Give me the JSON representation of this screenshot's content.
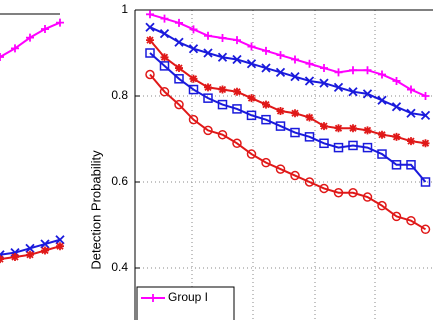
{
  "chart_data": [
    {
      "type": "line",
      "ylim": [
        0.2,
        1
      ],
      "series": [
        {
          "color": "#ff00ff",
          "marker": "plus",
          "values": [
            0.9,
            0.92,
            0.945,
            0.965,
            0.98
          ]
        },
        {
          "color": "#1a1adc",
          "marker": "x",
          "values": [
            0.44,
            0.445,
            0.455,
            0.465,
            0.475
          ]
        },
        {
          "color": "#e01818",
          "marker": "star",
          "values": [
            0.43,
            0.435,
            0.44,
            0.45,
            0.46
          ]
        }
      ]
    },
    {
      "type": "line",
      "ylabel": "Detection Probability",
      "ylim": [
        0.2,
        1
      ],
      "yticks": [
        0.4,
        0.6,
        0.8,
        1
      ],
      "grid": true,
      "series": [
        {
          "name": "Group I",
          "color": "#ff00ff",
          "marker": "plus",
          "values": [
            0.99,
            0.98,
            0.97,
            0.955,
            0.94,
            0.935,
            0.93,
            0.915,
            0.905,
            0.895,
            0.885,
            0.875,
            0.865,
            0.855,
            0.86,
            0.86,
            0.85,
            0.835,
            0.815,
            0.8
          ]
        },
        {
          "color": "#1a1adc",
          "marker": "x",
          "values": [
            0.96,
            0.945,
            0.925,
            0.91,
            0.9,
            0.89,
            0.885,
            0.875,
            0.865,
            0.855,
            0.845,
            0.835,
            0.83,
            0.82,
            0.81,
            0.805,
            0.79,
            0.775,
            0.76,
            0.755
          ]
        },
        {
          "color": "#e01818",
          "marker": "star",
          "values": [
            0.93,
            0.89,
            0.865,
            0.84,
            0.82,
            0.815,
            0.81,
            0.795,
            0.78,
            0.765,
            0.76,
            0.75,
            0.73,
            0.725,
            0.725,
            0.72,
            0.71,
            0.705,
            0.695,
            0.69
          ]
        },
        {
          "color": "#1a1adc",
          "marker": "square",
          "values": [
            0.9,
            0.87,
            0.84,
            0.815,
            0.795,
            0.78,
            0.77,
            0.755,
            0.745,
            0.73,
            0.715,
            0.705,
            0.69,
            0.68,
            0.685,
            0.68,
            0.665,
            0.64,
            0.64,
            0.6
          ]
        },
        {
          "color": "#e01818",
          "marker": "circle",
          "values": [
            0.85,
            0.81,
            0.78,
            0.745,
            0.72,
            0.71,
            0.69,
            0.665,
            0.645,
            0.63,
            0.615,
            0.6,
            0.585,
            0.575,
            0.575,
            0.565,
            0.545,
            0.52,
            0.51,
            0.49
          ]
        }
      ]
    }
  ]
}
